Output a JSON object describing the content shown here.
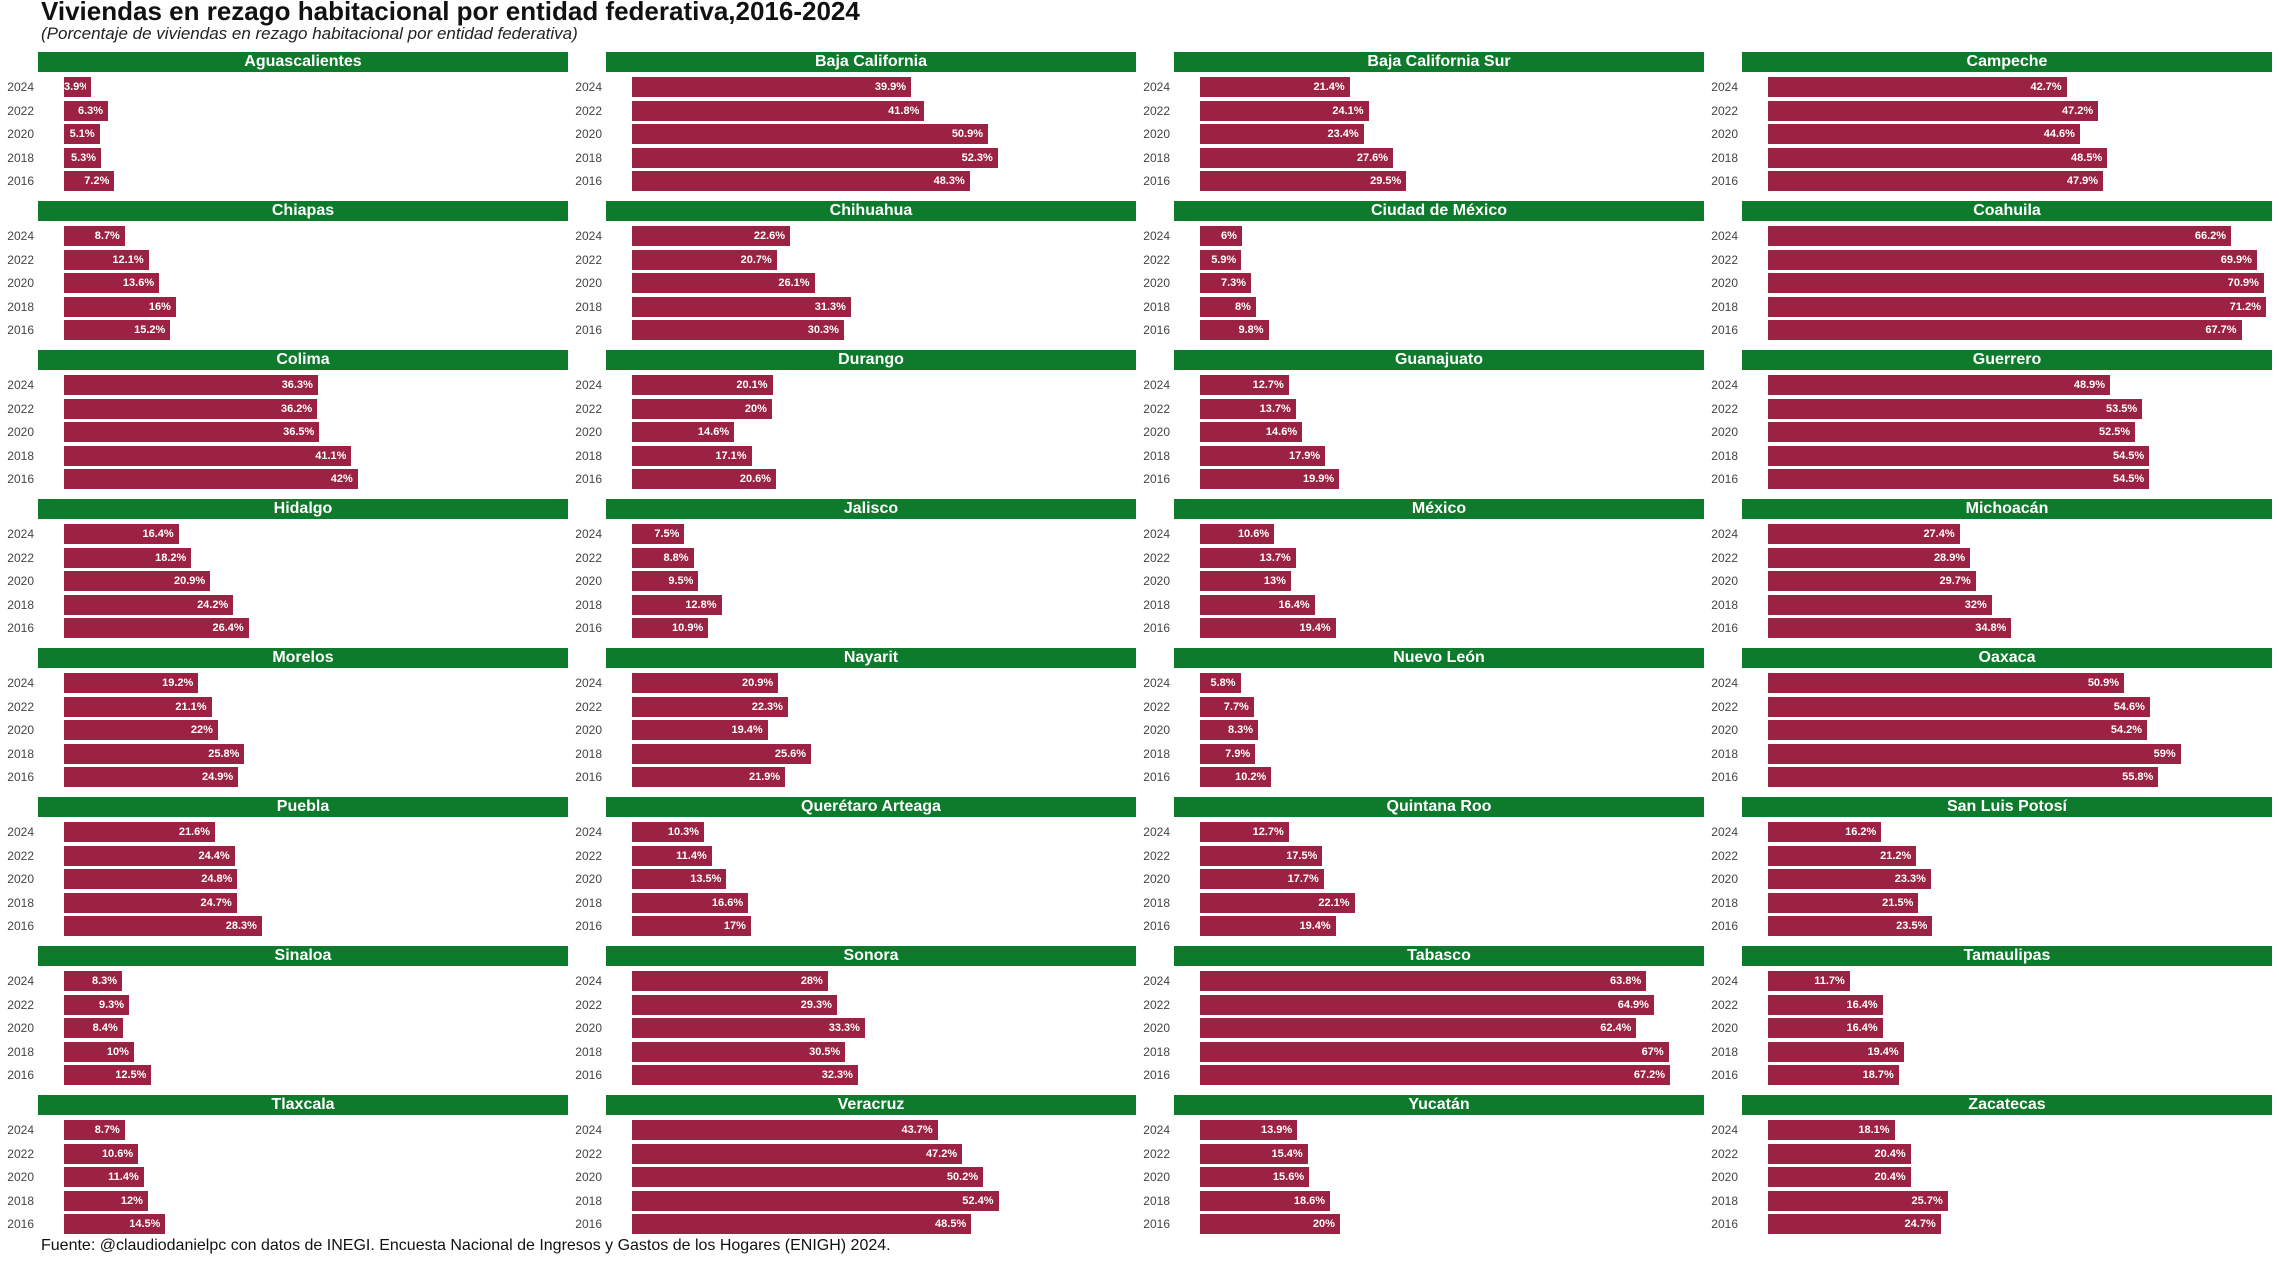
{
  "header": {
    "title": "Viviendas en rezago habitacional por entidad federativa,2016-2024",
    "subtitle": "(Porcentaje de viviendas en rezago habitacional por entidad federativa)",
    "source": "Fuente: @claudiodanielpc con datos de INEGI. Encuesta Nacional de Ingresos y Gastos de los Hogares (ENIGH) 2024."
  },
  "colors": {
    "strip": "#0e7a2b",
    "bar": "#9b2243"
  },
  "chart_data": {
    "type": "bar",
    "orientation": "horizontal",
    "facet": "entidad",
    "title": "Viviendas en rezago habitacional por entidad federativa,2016-2024",
    "subtitle": "(Porcentaje de viviendas en rezago habitacional por entidad federativa)",
    "categories": [
      "2024",
      "2022",
      "2020",
      "2018",
      "2016"
    ],
    "unit": "%",
    "xlim": [
      0,
      75
    ],
    "panels": [
      {
        "name": "Aguascalientes",
        "values": [
          3.9,
          6.3,
          5.1,
          5.3,
          7.2
        ],
        "labels": [
          "3.9%",
          "6.3%",
          "5.1%",
          "5.3%",
          "7.2%"
        ]
      },
      {
        "name": "Baja California",
        "values": [
          39.9,
          41.8,
          50.9,
          52.3,
          48.3
        ],
        "labels": [
          "39.9%",
          "41.8%",
          "50.9%",
          "52.3%",
          "48.3%"
        ]
      },
      {
        "name": "Baja California Sur",
        "values": [
          21.4,
          24.1,
          23.4,
          27.6,
          29.5
        ],
        "labels": [
          "21.4%",
          "24.1%",
          "23.4%",
          "27.6%",
          "29.5%"
        ]
      },
      {
        "name": "Campeche",
        "values": [
          42.7,
          47.2,
          44.6,
          48.5,
          47.9
        ],
        "labels": [
          "42.7%",
          "47.2%",
          "44.6%",
          "48.5%",
          "47.9%"
        ]
      },
      {
        "name": "Chiapas",
        "values": [
          8.7,
          12.1,
          13.6,
          16,
          15.2
        ],
        "labels": [
          "8.7%",
          "12.1%",
          "13.6%",
          "16%",
          "15.2%"
        ]
      },
      {
        "name": "Chihuahua",
        "values": [
          22.6,
          20.7,
          26.1,
          31.3,
          30.3
        ],
        "labels": [
          "22.6%",
          "20.7%",
          "26.1%",
          "31.3%",
          "30.3%"
        ]
      },
      {
        "name": "Ciudad de México",
        "values": [
          6,
          5.9,
          7.3,
          8,
          9.8
        ],
        "labels": [
          "6%",
          "5.9%",
          "7.3%",
          "8%",
          "9.8%"
        ]
      },
      {
        "name": "Coahuila",
        "values": [
          66.2,
          69.9,
          70.9,
          71.2,
          67.7
        ],
        "labels": [
          "66.2%",
          "69.9%",
          "70.9%",
          "71.2%",
          "67.7%"
        ]
      },
      {
        "name": "Colima",
        "values": [
          36.3,
          36.2,
          36.5,
          41.1,
          42
        ],
        "labels": [
          "36.3%",
          "36.2%",
          "36.5%",
          "41.1%",
          "42%"
        ]
      },
      {
        "name": "Durango",
        "values": [
          20.1,
          20,
          14.6,
          17.1,
          20.6
        ],
        "labels": [
          "20.1%",
          "20%",
          "14.6%",
          "17.1%",
          "20.6%"
        ]
      },
      {
        "name": "Guanajuato",
        "values": [
          12.7,
          13.7,
          14.6,
          17.9,
          19.9
        ],
        "labels": [
          "12.7%",
          "13.7%",
          "14.6%",
          "17.9%",
          "19.9%"
        ]
      },
      {
        "name": "Guerrero",
        "values": [
          48.9,
          53.5,
          52.5,
          54.5,
          54.5
        ],
        "labels": [
          "48.9%",
          "53.5%",
          "52.5%",
          "54.5%",
          "54.5%"
        ]
      },
      {
        "name": "Hidalgo",
        "values": [
          16.4,
          18.2,
          20.9,
          24.2,
          26.4
        ],
        "labels": [
          "16.4%",
          "18.2%",
          "20.9%",
          "24.2%",
          "26.4%"
        ]
      },
      {
        "name": "Jalisco",
        "values": [
          7.5,
          8.8,
          9.5,
          12.8,
          10.9
        ],
        "labels": [
          "7.5%",
          "8.8%",
          "9.5%",
          "12.8%",
          "10.9%"
        ]
      },
      {
        "name": "México",
        "values": [
          10.6,
          13.7,
          13,
          16.4,
          19.4
        ],
        "labels": [
          "10.6%",
          "13.7%",
          "13%",
          "16.4%",
          "19.4%"
        ]
      },
      {
        "name": "Michoacán",
        "values": [
          27.4,
          28.9,
          29.7,
          32,
          34.8
        ],
        "labels": [
          "27.4%",
          "28.9%",
          "29.7%",
          "32%",
          "34.8%"
        ]
      },
      {
        "name": "Morelos",
        "values": [
          19.2,
          21.1,
          22,
          25.8,
          24.9
        ],
        "labels": [
          "19.2%",
          "21.1%",
          "22%",
          "25.8%",
          "24.9%"
        ]
      },
      {
        "name": "Nayarit",
        "values": [
          20.9,
          22.3,
          19.4,
          25.6,
          21.9
        ],
        "labels": [
          "20.9%",
          "22.3%",
          "19.4%",
          "25.6%",
          "21.9%"
        ]
      },
      {
        "name": "Nuevo León",
        "values": [
          5.8,
          7.7,
          8.3,
          7.9,
          10.2
        ],
        "labels": [
          "5.8%",
          "7.7%",
          "8.3%",
          "7.9%",
          "10.2%"
        ]
      },
      {
        "name": "Oaxaca",
        "values": [
          50.9,
          54.6,
          54.2,
          59,
          55.8
        ],
        "labels": [
          "50.9%",
          "54.6%",
          "54.2%",
          "59%",
          "55.8%"
        ]
      },
      {
        "name": "Puebla",
        "values": [
          21.6,
          24.4,
          24.8,
          24.7,
          28.3
        ],
        "labels": [
          "21.6%",
          "24.4%",
          "24.8%",
          "24.7%",
          "28.3%"
        ]
      },
      {
        "name": "Querétaro Arteaga",
        "values": [
          10.3,
          11.4,
          13.5,
          16.6,
          17
        ],
        "labels": [
          "10.3%",
          "11.4%",
          "13.5%",
          "16.6%",
          "17%"
        ]
      },
      {
        "name": "Quintana Roo",
        "values": [
          12.7,
          17.5,
          17.7,
          22.1,
          19.4
        ],
        "labels": [
          "12.7%",
          "17.5%",
          "17.7%",
          "22.1%",
          "19.4%"
        ]
      },
      {
        "name": "San Luis Potosí",
        "values": [
          16.2,
          21.2,
          23.3,
          21.5,
          23.5
        ],
        "labels": [
          "16.2%",
          "21.2%",
          "23.3%",
          "21.5%",
          "23.5%"
        ]
      },
      {
        "name": "Sinaloa",
        "values": [
          8.3,
          9.3,
          8.4,
          10,
          12.5
        ],
        "labels": [
          "8.3%",
          "9.3%",
          "8.4%",
          "10%",
          "12.5%"
        ]
      },
      {
        "name": "Sonora",
        "values": [
          28,
          29.3,
          33.3,
          30.5,
          32.3
        ],
        "labels": [
          "28%",
          "29.3%",
          "33.3%",
          "30.5%",
          "32.3%"
        ]
      },
      {
        "name": "Tabasco",
        "values": [
          63.8,
          64.9,
          62.4,
          67,
          67.2
        ],
        "labels": [
          "63.8%",
          "64.9%",
          "62.4%",
          "67%",
          "67.2%"
        ]
      },
      {
        "name": "Tamaulipas",
        "values": [
          11.7,
          16.4,
          16.4,
          19.4,
          18.7
        ],
        "labels": [
          "11.7%",
          "16.4%",
          "16.4%",
          "19.4%",
          "18.7%"
        ]
      },
      {
        "name": "Tlaxcala",
        "values": [
          8.7,
          10.6,
          11.4,
          12,
          14.5
        ],
        "labels": [
          "8.7%",
          "10.6%",
          "11.4%",
          "12%",
          "14.5%"
        ]
      },
      {
        "name": "Veracruz",
        "values": [
          43.7,
          47.2,
          50.2,
          52.4,
          48.5
        ],
        "labels": [
          "43.7%",
          "47.2%",
          "50.2%",
          "52.4%",
          "48.5%"
        ]
      },
      {
        "name": "Yucatán",
        "values": [
          13.9,
          15.4,
          15.6,
          18.6,
          20
        ],
        "labels": [
          "13.9%",
          "15.4%",
          "15.6%",
          "18.6%",
          "20%"
        ]
      },
      {
        "name": "Zacatecas",
        "values": [
          18.1,
          20.4,
          20.4,
          25.7,
          24.7
        ],
        "labels": [
          "18.1%",
          "20.4%",
          "20.4%",
          "25.7%",
          "24.7%"
        ]
      }
    ]
  }
}
